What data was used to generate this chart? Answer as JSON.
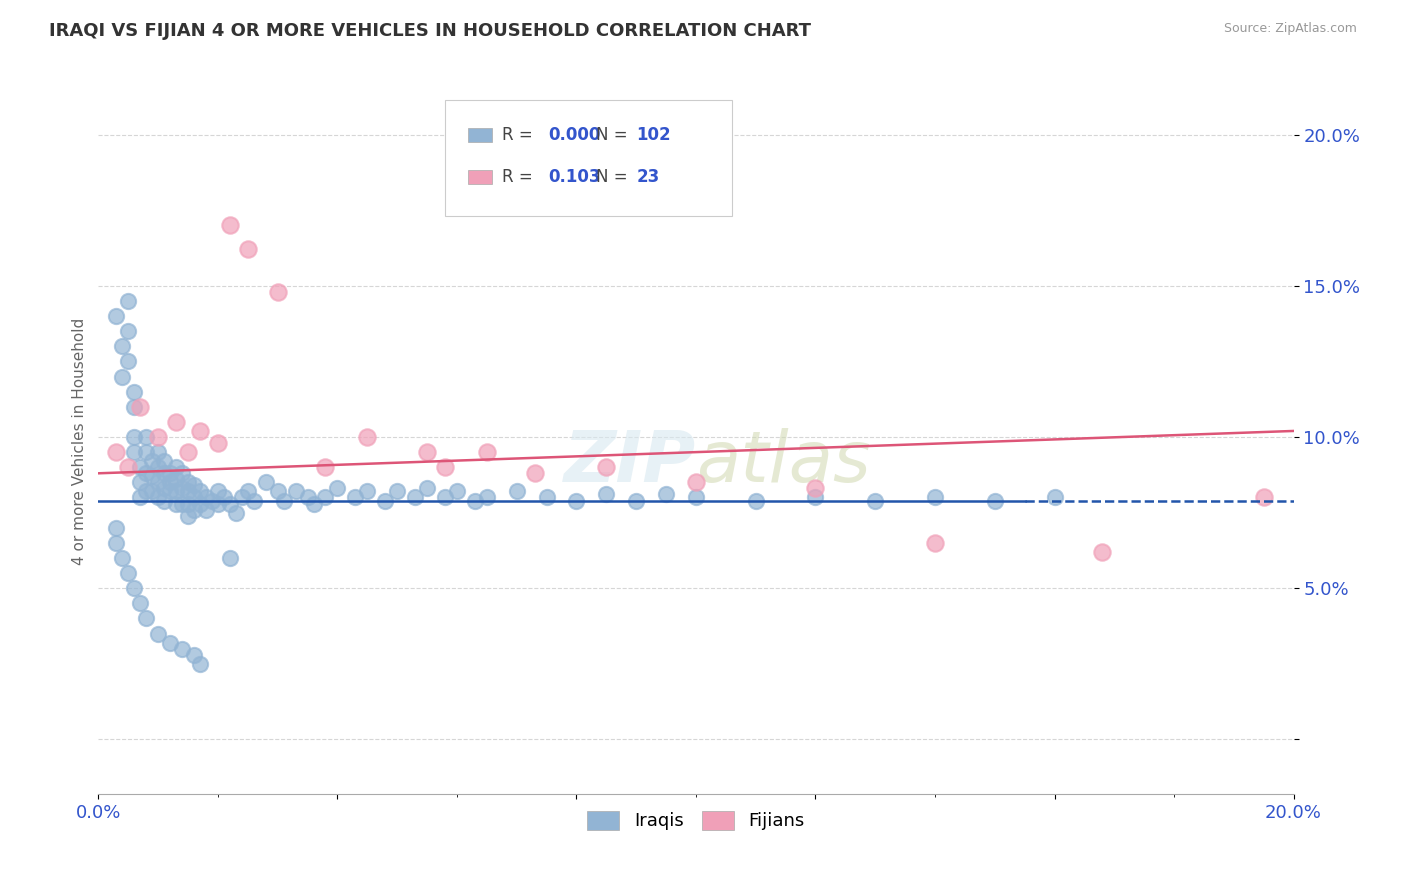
{
  "title": "IRAQI VS FIJIAN 4 OR MORE VEHICLES IN HOUSEHOLD CORRELATION CHART",
  "source": "Source: ZipAtlas.com",
  "ylabel": "4 or more Vehicles in Household",
  "xmin": 0.0,
  "xmax": 0.2,
  "ymin": -0.018,
  "ymax": 0.215,
  "legend_r1": "0.000",
  "legend_n1": "102",
  "legend_r2": "0.103",
  "legend_n2": "23",
  "iraqis_color": "#92b4d4",
  "fijians_color": "#f0a0b8",
  "iraqis_line_color": "#2255aa",
  "fijians_line_color": "#dd5577",
  "r_text_color": "#3355cc",
  "background_color": "#ffffff",
  "grid_color": "#cccccc",
  "iraqis_line_y": 0.079,
  "fijians_line_start_y": 0.088,
  "fijians_line_end_y": 0.102,
  "iraqis_x": [
    0.003,
    0.004,
    0.004,
    0.005,
    0.005,
    0.005,
    0.006,
    0.006,
    0.006,
    0.006,
    0.007,
    0.007,
    0.007,
    0.008,
    0.008,
    0.008,
    0.008,
    0.009,
    0.009,
    0.009,
    0.01,
    0.01,
    0.01,
    0.01,
    0.011,
    0.011,
    0.011,
    0.011,
    0.012,
    0.012,
    0.012,
    0.013,
    0.013,
    0.013,
    0.013,
    0.014,
    0.014,
    0.014,
    0.015,
    0.015,
    0.015,
    0.015,
    0.016,
    0.016,
    0.016,
    0.017,
    0.017,
    0.018,
    0.018,
    0.019,
    0.02,
    0.02,
    0.021,
    0.022,
    0.023,
    0.024,
    0.025,
    0.026,
    0.028,
    0.03,
    0.031,
    0.033,
    0.035,
    0.036,
    0.038,
    0.04,
    0.043,
    0.045,
    0.048,
    0.05,
    0.053,
    0.055,
    0.058,
    0.06,
    0.063,
    0.065,
    0.07,
    0.075,
    0.08,
    0.085,
    0.09,
    0.095,
    0.1,
    0.11,
    0.12,
    0.13,
    0.14,
    0.15,
    0.16,
    0.003,
    0.003,
    0.004,
    0.005,
    0.006,
    0.007,
    0.008,
    0.01,
    0.012,
    0.014,
    0.016,
    0.017,
    0.022
  ],
  "iraqis_y": [
    0.14,
    0.13,
    0.12,
    0.145,
    0.135,
    0.125,
    0.115,
    0.11,
    0.1,
    0.095,
    0.09,
    0.085,
    0.08,
    0.1,
    0.095,
    0.088,
    0.082,
    0.092,
    0.087,
    0.082,
    0.095,
    0.09,
    0.085,
    0.08,
    0.092,
    0.088,
    0.083,
    0.079,
    0.088,
    0.085,
    0.082,
    0.09,
    0.086,
    0.082,
    0.078,
    0.088,
    0.083,
    0.078,
    0.085,
    0.082,
    0.078,
    0.074,
    0.084,
    0.08,
    0.076,
    0.082,
    0.078,
    0.08,
    0.076,
    0.079,
    0.082,
    0.078,
    0.08,
    0.078,
    0.075,
    0.08,
    0.082,
    0.079,
    0.085,
    0.082,
    0.079,
    0.082,
    0.08,
    0.078,
    0.08,
    0.083,
    0.08,
    0.082,
    0.079,
    0.082,
    0.08,
    0.083,
    0.08,
    0.082,
    0.079,
    0.08,
    0.082,
    0.08,
    0.079,
    0.081,
    0.079,
    0.081,
    0.08,
    0.079,
    0.08,
    0.079,
    0.08,
    0.079,
    0.08,
    0.07,
    0.065,
    0.06,
    0.055,
    0.05,
    0.045,
    0.04,
    0.035,
    0.032,
    0.03,
    0.028,
    0.025,
    0.06
  ],
  "fijians_x": [
    0.003,
    0.005,
    0.007,
    0.01,
    0.013,
    0.015,
    0.017,
    0.02,
    0.022,
    0.025,
    0.03,
    0.038,
    0.045,
    0.055,
    0.058,
    0.065,
    0.073,
    0.085,
    0.1,
    0.12,
    0.14,
    0.168,
    0.195
  ],
  "fijians_y": [
    0.095,
    0.09,
    0.11,
    0.1,
    0.105,
    0.095,
    0.102,
    0.098,
    0.17,
    0.162,
    0.148,
    0.09,
    0.1,
    0.095,
    0.09,
    0.095,
    0.088,
    0.09,
    0.085,
    0.083,
    0.065,
    0.062,
    0.08
  ]
}
